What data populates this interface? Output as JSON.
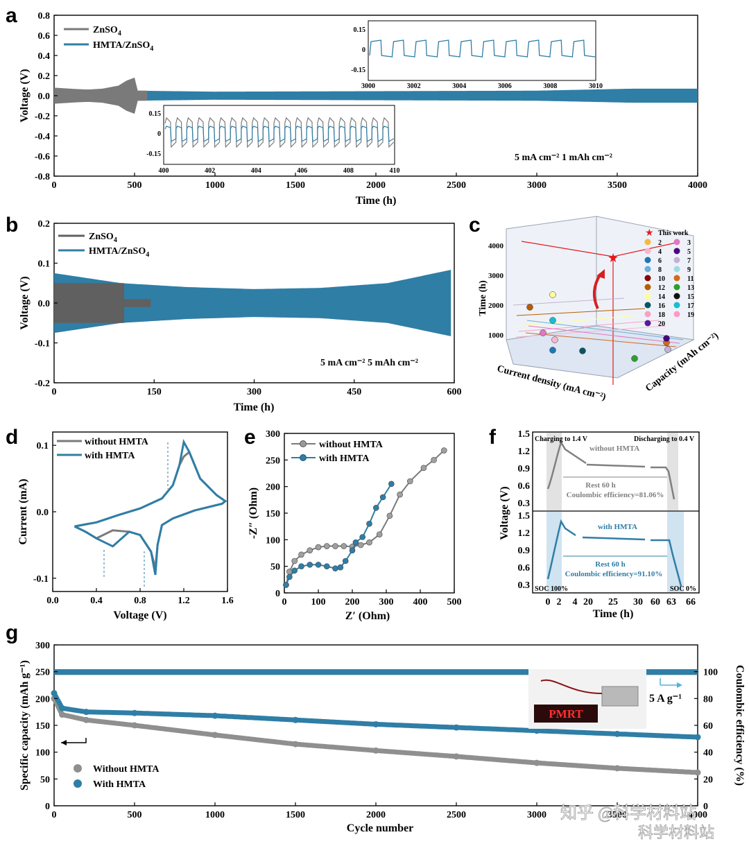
{
  "colors": {
    "gray": "#7a7a7a",
    "blue": "#2f7ea6",
    "dark_gray": "#606060",
    "red": "#e41a1c"
  },
  "panels": {
    "a": "a",
    "b": "b",
    "c": "c",
    "d": "d",
    "e": "e",
    "f": "f",
    "g": "g"
  },
  "chart_data": [
    {
      "id": "a",
      "type": "line",
      "xlabel": "Time (h)",
      "ylabel": "Voltage (V)",
      "xlim": [
        0,
        4000
      ],
      "ylim": [
        -0.8,
        0.8
      ],
      "xticks": [
        "0",
        "500",
        "1000",
        "1500",
        "2000",
        "2500",
        "3000",
        "3500",
        "4000"
      ],
      "yticks": [
        "0.8",
        "0.6",
        "0.4",
        "0.2",
        "0.0",
        "-0.2",
        "-0.4",
        "-0.6",
        "-0.8"
      ],
      "legend": [
        "ZnSO",
        "HMTA/ZnSO"
      ],
      "legend_subscript": "4",
      "annotation": "5 mA cm⁻²   1 mAh cm⁻²",
      "series": [
        {
          "name": "ZnSO4",
          "x": [
            0,
            100,
            200,
            300,
            400,
            450,
            500,
            520,
            580
          ],
          "upper": [
            0.08,
            0.07,
            0.06,
            0.07,
            0.1,
            0.15,
            0.18,
            0.05,
            0.05
          ]
        },
        {
          "name": "HMTA/ZnSO4",
          "x": [
            0,
            500,
            1000,
            2000,
            3000,
            3600,
            4000
          ],
          "upper": [
            0.07,
            0.05,
            0.04,
            0.045,
            0.05,
            0.07,
            0.07
          ]
        }
      ],
      "inset_top": {
        "xlim": [
          3000,
          3010
        ],
        "xticks": [
          "3000",
          "3002",
          "3004",
          "3006",
          "3008",
          "3010"
        ],
        "yticks": [
          "0.15",
          "0",
          "-0.15"
        ]
      },
      "inset_bottom": {
        "xlim": [
          400,
          410
        ],
        "xticks": [
          "400",
          "402",
          "404",
          "406",
          "408",
          "410"
        ],
        "yticks": [
          "0.15",
          "0",
          "-0.15"
        ]
      }
    },
    {
      "id": "b",
      "type": "line",
      "xlabel": "Time (h)",
      "ylabel": "Voltage (V)",
      "xlim": [
        0,
        600
      ],
      "ylim": [
        -0.2,
        0.2
      ],
      "xticks": [
        "0",
        "150",
        "300",
        "450",
        "600"
      ],
      "yticks": [
        "0.2",
        "0.1",
        "0.0",
        "-0.1",
        "-0.2"
      ],
      "legend": [
        "ZnSO",
        "HMTA/ZnSO"
      ],
      "legend_subscript": "4",
      "annotation": "5 mA cm⁻²   5 mAh cm⁻²",
      "series": [
        {
          "name": "ZnSO4",
          "x": [
            0,
            110,
            150
          ],
          "upper": [
            0.05,
            0.045,
            0.01
          ]
        },
        {
          "name": "HMTA/ZnSO4",
          "x": [
            0,
            100,
            200,
            300,
            400,
            500,
            600
          ],
          "upper": [
            0.075,
            0.05,
            0.04,
            0.035,
            0.038,
            0.05,
            0.085
          ]
        }
      ]
    },
    {
      "id": "c",
      "type": "scatter3d",
      "zlabel": "Time (h)",
      "xlabel": "Current density (mA cm⁻²)",
      "ylabel": "Capacity (mAh cm⁻²)",
      "zticks": [
        "4000",
        "3000",
        "2000",
        "1000"
      ],
      "legend": [
        "This work",
        "2",
        "3",
        "4",
        "5",
        "6",
        "7",
        "8",
        "9",
        "10",
        "11",
        "12",
        "13",
        "14",
        "15",
        "16",
        "17",
        "18",
        "19",
        "20"
      ]
    },
    {
      "id": "d",
      "type": "line",
      "xlabel": "Voltage (V)",
      "ylabel": "Current (mA)",
      "xlim": [
        0,
        1.6
      ],
      "ylim": [
        -0.12,
        0.12
      ],
      "xticks": [
        "0.0",
        "0.4",
        "0.8",
        "1.2",
        "1.6"
      ],
      "yticks": [
        "0.1",
        "0.0",
        "-0.1"
      ],
      "legend": [
        "without HMTA",
        "with HMTA"
      ]
    },
    {
      "id": "e",
      "type": "scatter",
      "xlabel": "Z′ (Ohm)",
      "ylabel": "-Z″ (Ohm)",
      "xlim": [
        0,
        500
      ],
      "ylim": [
        0,
        300
      ],
      "xticks": [
        "0",
        "100",
        "200",
        "300",
        "400",
        "500"
      ],
      "yticks": [
        "300",
        "250",
        "200",
        "150",
        "100",
        "50",
        "0"
      ],
      "legend": [
        "without HMTA",
        "with HMTA"
      ],
      "series": [
        {
          "name": "without HMTA",
          "x": [
            5,
            15,
            30,
            50,
            75,
            100,
            125,
            150,
            175,
            200,
            225,
            250,
            280,
            310,
            340,
            370,
            410,
            440,
            470
          ],
          "y": [
            15,
            40,
            60,
            72,
            80,
            86,
            88,
            88,
            88,
            87,
            90,
            95,
            110,
            145,
            185,
            210,
            235,
            250,
            268
          ]
        },
        {
          "name": "with HMTA",
          "x": [
            5,
            15,
            30,
            50,
            75,
            100,
            125,
            150,
            165,
            180,
            200,
            210,
            230,
            250,
            270,
            290,
            315
          ],
          "y": [
            15,
            30,
            42,
            50,
            53,
            53,
            50,
            46,
            48,
            60,
            80,
            95,
            105,
            130,
            160,
            180,
            205
          ]
        }
      ]
    },
    {
      "id": "f",
      "type": "line",
      "xlabel": "Time (h)",
      "ylabel": "Voltage (V)",
      "xticks": [
        "0",
        "2",
        "4",
        "20",
        "25",
        "30",
        "60",
        "63",
        "66"
      ],
      "yticks_top": [
        "1.5",
        "1.2",
        "0.9",
        "0.6",
        "0.3"
      ],
      "yticks_bottom": [
        "1.5",
        "1.2",
        "0.9",
        "0.6",
        "0.3"
      ],
      "top": {
        "charge": "Charging to 1.4 V",
        "discharge": "Discharging to 0.4 V",
        "label": "without HMTA",
        "rest": "Rest 60 h",
        "ce": "Coulombic efficiency=81.06%"
      },
      "bottom": {
        "label": "with HMTA",
        "rest": "Rest 60 h",
        "ce": "Coulombic efficiency=91.10%",
        "soc100": "SOC 100%",
        "soc0": "SOC 0%"
      }
    },
    {
      "id": "g",
      "type": "scatter",
      "xlabel": "Cycle number",
      "ylabel": "Specific capacity (mAh g⁻¹)",
      "y2label": "Coulombic efficiency (%)",
      "xlim": [
        0,
        4000
      ],
      "ylim": [
        0,
        300
      ],
      "y2lim": [
        0,
        120
      ],
      "xticks": [
        "0",
        "500",
        "1000",
        "1500",
        "2000",
        "2500",
        "3000",
        "3500",
        "4000"
      ],
      "yticks": [
        "300",
        "250",
        "200",
        "150",
        "100",
        "50",
        "0"
      ],
      "y2ticks": [
        "100",
        "80",
        "60",
        "40",
        "20",
        "0"
      ],
      "legend": [
        "Without HMTA",
        "With HMTA"
      ],
      "annotation": "5 A g⁻¹",
      "badge_text": "PMRT",
      "series": [
        {
          "name": "Without HMTA",
          "x": [
            0,
            50,
            200,
            500,
            1000,
            1500,
            2000,
            2500,
            3000,
            3500,
            4000
          ],
          "y": [
            200,
            170,
            160,
            150,
            132,
            115,
            103,
            92,
            80,
            70,
            62
          ]
        },
        {
          "name": "With HMTA",
          "x": [
            0,
            50,
            200,
            500,
            1000,
            1500,
            2000,
            2500,
            3000,
            3500,
            4000
          ],
          "y": [
            210,
            182,
            175,
            173,
            168,
            160,
            152,
            146,
            140,
            134,
            128
          ]
        },
        {
          "name": "CE Without HMTA",
          "x": [
            0,
            4000
          ],
          "y": [
            99.5,
            99.5
          ]
        },
        {
          "name": "CE With HMTA",
          "x": [
            0,
            4000
          ],
          "y": [
            99.8,
            99.8
          ]
        }
      ]
    }
  ],
  "watermark": {
    "line1": "知乎 @科学材料站",
    "line2": "科学材料站"
  }
}
